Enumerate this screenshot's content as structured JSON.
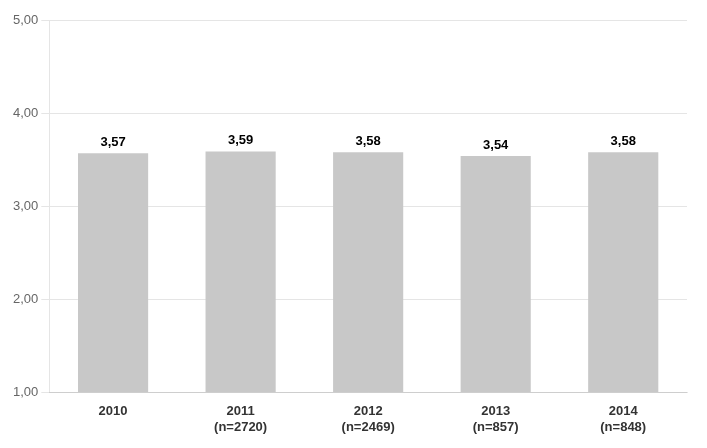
{
  "chart_data": {
    "type": "bar",
    "categories": [
      "2010",
      "2011\n(n=2720)",
      "2012\n(n=2469)",
      "2013\n(n=857)",
      "2014\n(n=848)"
    ],
    "values": [
      3.57,
      3.59,
      3.58,
      3.54,
      3.58
    ],
    "value_labels": [
      "3,57",
      "3,59",
      "3,58",
      "3,54",
      "3,58"
    ],
    "data_labels": true,
    "color": "#c8c8c8",
    "ylim": [
      1.0,
      5.0
    ],
    "yticks": [
      {
        "value": 1.0,
        "label": "1,00"
      },
      {
        "value": 2.0,
        "label": "2,00"
      },
      {
        "value": 3.0,
        "label": "3,00"
      },
      {
        "value": 4.0,
        "label": "4,00"
      },
      {
        "value": 5.0,
        "label": "5,00"
      }
    ],
    "grid": true
  }
}
